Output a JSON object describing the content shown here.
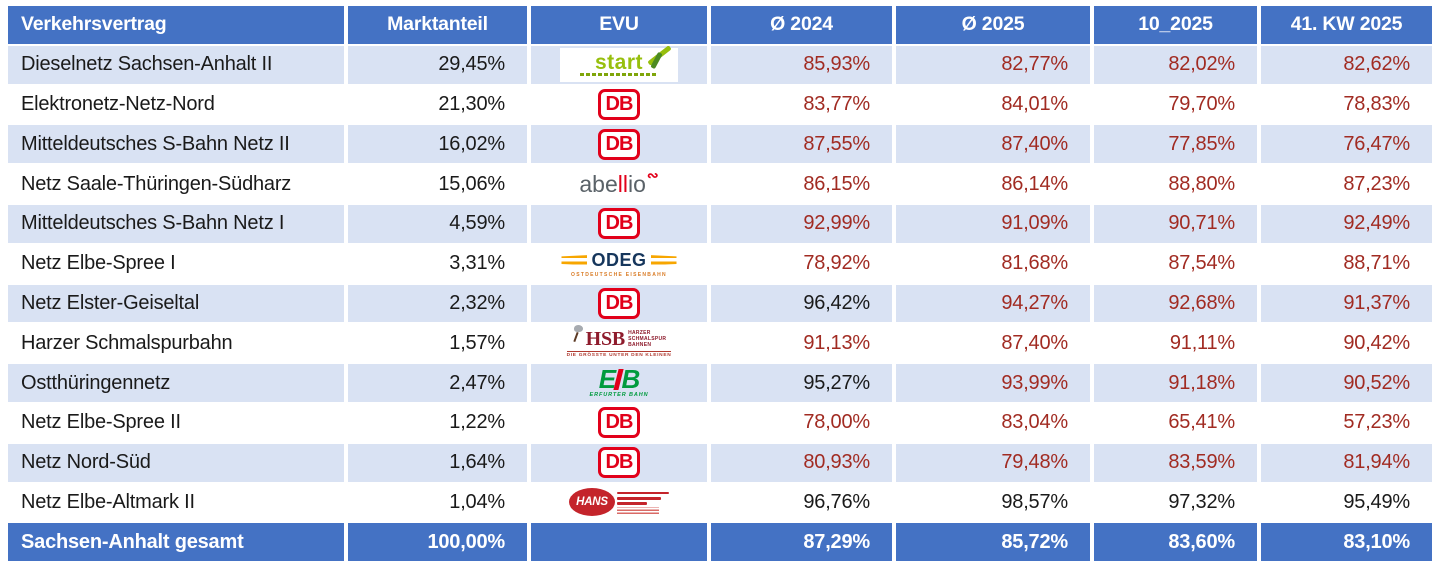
{
  "table": {
    "columns": [
      {
        "label": "Verkehrsvertrag"
      },
      {
        "label": "Marktanteil"
      },
      {
        "label": "EVU"
      },
      {
        "label": "Ø 2024"
      },
      {
        "label": "Ø 2025"
      },
      {
        "label": "10_2025"
      },
      {
        "label": "41. KW 2025"
      }
    ],
    "rows": [
      {
        "contract": "Dieselnetz Sachsen-Anhalt II",
        "share": "29,45%",
        "evu": "start",
        "values": [
          "85,93%",
          "82,77%",
          "82,02%",
          "82,62%"
        ]
      },
      {
        "contract": "Elektronetz-Netz-Nord",
        "share": "21,30%",
        "evu": "db",
        "values": [
          "83,77%",
          "84,01%",
          "79,70%",
          "78,83%"
        ]
      },
      {
        "contract": "Mitteldeutsches S-Bahn Netz II",
        "share": "16,02%",
        "evu": "db",
        "values": [
          "87,55%",
          "87,40%",
          "77,85%",
          "76,47%"
        ]
      },
      {
        "contract": "Netz Saale-Thüringen-Südharz",
        "share": "15,06%",
        "evu": "abellio",
        "values": [
          "86,15%",
          "86,14%",
          "88,80%",
          "87,23%"
        ]
      },
      {
        "contract": "Mitteldeutsches S-Bahn Netz I",
        "share": "4,59%",
        "evu": "db",
        "values": [
          "92,99%",
          "91,09%",
          "90,71%",
          "92,49%"
        ]
      },
      {
        "contract": "Netz Elbe-Spree I",
        "share": "3,31%",
        "evu": "odeg",
        "values": [
          "78,92%",
          "81,68%",
          "87,54%",
          "88,71%"
        ]
      },
      {
        "contract": "Netz Elster-Geiseltal",
        "share": "2,32%",
        "evu": "db",
        "values": [
          "96,42%",
          "94,27%",
          "92,68%",
          "91,37%"
        ]
      },
      {
        "contract": "Harzer Schmalspurbahn",
        "share": "1,57%",
        "evu": "hsb",
        "values": [
          "91,13%",
          "87,40%",
          "91,11%",
          "90,42%"
        ]
      },
      {
        "contract": "Ostthüringennetz",
        "share": "2,47%",
        "evu": "eb",
        "values": [
          "95,27%",
          "93,99%",
          "91,18%",
          "90,52%"
        ]
      },
      {
        "contract": "Netz Elbe-Spree II",
        "share": "1,22%",
        "evu": "db",
        "values": [
          "78,00%",
          "83,04%",
          "65,41%",
          "57,23%"
        ]
      },
      {
        "contract": "Netz Nord-Süd",
        "share": "1,64%",
        "evu": "db",
        "values": [
          "80,93%",
          "79,48%",
          "83,59%",
          "81,94%"
        ]
      },
      {
        "contract": "Netz Elbe-Altmark II",
        "share": "1,04%",
        "evu": "hans",
        "values": [
          "96,76%",
          "98,57%",
          "97,32%",
          "95,49%"
        ]
      }
    ],
    "footer": {
      "contract": "Sachsen-Anhalt gesamt",
      "share": "100,00%",
      "values": [
        "87,29%",
        "85,72%",
        "83,60%",
        "83,10%"
      ]
    },
    "value_rules": {
      "black_threshold": 95
    },
    "colors": {
      "header_bg": "#4472C4",
      "header_text": "#FFFFFF",
      "row_alt_bg": "#D9E2F3",
      "row_bg": "#FFFFFF",
      "value_red": "#A12B22",
      "text_black": "#1A1A1A"
    }
  },
  "logos": {
    "start": {
      "wordmark": "start",
      "color": "#97BF0D"
    },
    "db": {
      "wordmark": "DB",
      "color": "#E2001A"
    },
    "abellio": {
      "part_gray1": "abe",
      "part_red": "ll",
      "part_gray2": "io",
      "gray": "#5A6268",
      "red": "#E2001A"
    },
    "odeg": {
      "wordmark": "ODEG",
      "subtitle": "OSTDEUTSCHE EISENBAHN",
      "navy": "#16365C",
      "orange": "#F7A600"
    },
    "hsb": {
      "wordmark": "HSB",
      "subtitle_lines": [
        "HARZER",
        "SCHMALSPUR",
        "BAHNEN"
      ],
      "slogan": "DIE GRÖSSTE UNTER DEN KLEINEN",
      "color": "#8E1B2C"
    },
    "eb": {
      "letter_e": "E",
      "letter_b": "B",
      "subtitle": "ERFURTER BAHN",
      "green": "#009B3E",
      "red": "#E2001A"
    },
    "hans": {
      "wordmark": "HANS",
      "color": "#C4242B"
    }
  },
  "chart_data": {
    "type": "table",
    "columns": [
      "Verkehrsvertrag",
      "Marktanteil",
      "EVU",
      "Ø 2024",
      "Ø 2025",
      "10_2025",
      "41. KW 2025"
    ],
    "rows": [
      [
        "Dieselnetz Sachsen-Anhalt II",
        "29,45%",
        "start",
        "85,93%",
        "82,77%",
        "82,02%",
        "82,62%"
      ],
      [
        "Elektronetz-Netz-Nord",
        "21,30%",
        "DB",
        "83,77%",
        "84,01%",
        "79,70%",
        "78,83%"
      ],
      [
        "Mitteldeutsches S-Bahn Netz II",
        "16,02%",
        "DB",
        "87,55%",
        "87,40%",
        "77,85%",
        "76,47%"
      ],
      [
        "Netz Saale-Thüringen-Südharz",
        "15,06%",
        "abellio",
        "86,15%",
        "86,14%",
        "88,80%",
        "87,23%"
      ],
      [
        "Mitteldeutsches S-Bahn Netz I",
        "4,59%",
        "DB",
        "92,99%",
        "91,09%",
        "90,71%",
        "92,49%"
      ],
      [
        "Netz Elbe-Spree I",
        "3,31%",
        "ODEG",
        "78,92%",
        "81,68%",
        "87,54%",
        "88,71%"
      ],
      [
        "Netz Elster-Geiseltal",
        "2,32%",
        "DB",
        "96,42%",
        "94,27%",
        "92,68%",
        "91,37%"
      ],
      [
        "Harzer Schmalspurbahn",
        "1,57%",
        "HSB",
        "91,13%",
        "87,40%",
        "91,11%",
        "90,42%"
      ],
      [
        "Ostthüringennetz",
        "2,47%",
        "EB",
        "95,27%",
        "93,99%",
        "91,18%",
        "90,52%"
      ],
      [
        "Netz Elbe-Spree II",
        "1,22%",
        "DB",
        "78,00%",
        "83,04%",
        "65,41%",
        "57,23%"
      ],
      [
        "Netz Nord-Süd",
        "1,64%",
        "DB",
        "80,93%",
        "79,48%",
        "83,59%",
        "81,94%"
      ],
      [
        "Netz Elbe-Altmark II",
        "1,04%",
        "HANS",
        "96,76%",
        "98,57%",
        "97,32%",
        "95,49%"
      ]
    ],
    "footer": [
      "Sachsen-Anhalt gesamt",
      "100,00%",
      "",
      "87,29%",
      "85,72%",
      "83,60%",
      "83,10%"
    ],
    "style_note": "percentage values >= 95 rendered black, below 95 rendered dark red"
  }
}
